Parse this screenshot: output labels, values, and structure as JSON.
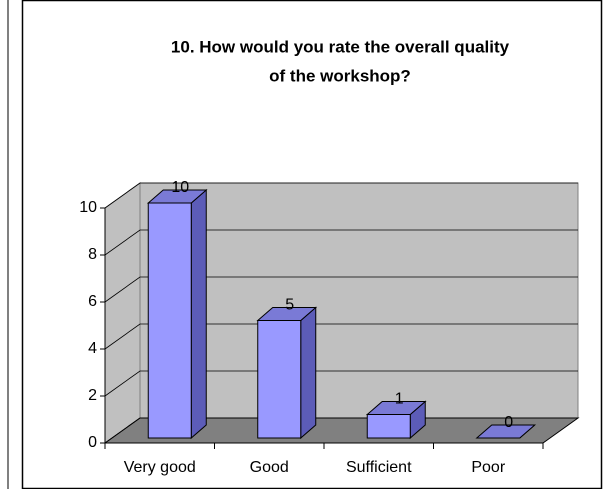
{
  "chart_data": {
    "type": "bar3d",
    "title": [
      "10. How would you rate the overall quality",
      "of the workshop?"
    ],
    "categories": [
      "Very good",
      "Good",
      "Sufficient",
      "Poor"
    ],
    "values": [
      10,
      5,
      1,
      0
    ],
    "color": "#9999ff",
    "ylim": [
      0,
      10
    ],
    "yticks": [
      0,
      2,
      4,
      6,
      8,
      10
    ],
    "grid": true
  }
}
